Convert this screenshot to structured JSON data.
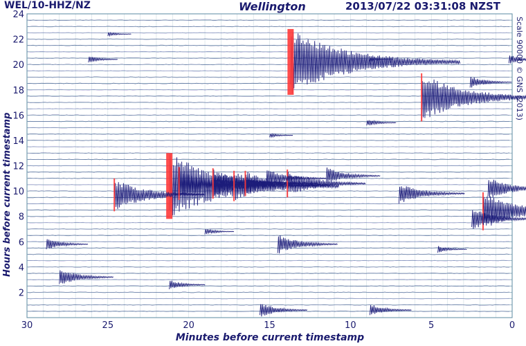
{
  "header": {
    "station": "WEL/10-HHZ/NZ",
    "place": "Wellington",
    "timestamp": "2013/07/22 03:31:08 NZST"
  },
  "side_note": "Scale 90000 © GNS (2013)",
  "colors": {
    "text": "#1a1a6e",
    "trace": "#1c1c7a",
    "trace_alt": "#8060c8",
    "grid": "#5a88a0",
    "saturated": "#ff3a3a"
  },
  "chart_data": {
    "type": "seismogram-helicorder",
    "title": "Wellington",
    "xlabel": "Minutes before current timestamp",
    "ylabel": "Hours before current timestamp",
    "xlim": [
      30,
      0
    ],
    "ylim": [
      0,
      24
    ],
    "x_ticks": [
      30,
      25,
      20,
      15,
      10,
      5,
      0
    ],
    "y_ticks": [
      2,
      4,
      6,
      8,
      10,
      12,
      14,
      16,
      18,
      20,
      22,
      24
    ],
    "grid": true,
    "trace_interval_hours": 0.5,
    "events": [
      {
        "minutes": 13.7,
        "hours": 20.2,
        "amplitude": 2.6,
        "saturated": true
      },
      {
        "minutes": 21.2,
        "hours": 10.4,
        "amplitude": 2.6,
        "saturated": true
      },
      {
        "minutes": 5.6,
        "hours": 17.4,
        "amplitude": 1.9,
        "saturated": true
      },
      {
        "minutes": 24.6,
        "hours": 9.7,
        "amplitude": 1.3,
        "saturated": true
      },
      {
        "minutes": 20.6,
        "hours": 10.6,
        "amplitude": 1.3,
        "saturated": true
      },
      {
        "minutes": 18.5,
        "hours": 10.6,
        "amplitude": 1.2,
        "saturated": true
      },
      {
        "minutes": 17.2,
        "hours": 10.4,
        "amplitude": 1.2,
        "saturated": true
      },
      {
        "minutes": 16.5,
        "hours": 10.6,
        "amplitude": 1.0,
        "saturated": true
      },
      {
        "minutes": 13.9,
        "hours": 10.6,
        "amplitude": 1.1,
        "saturated": true
      },
      {
        "minutes": 1.8,
        "hours": 8.4,
        "amplitude": 1.5,
        "saturated": true
      },
      {
        "minutes": 15.2,
        "hours": 11.0,
        "amplitude": 0.8,
        "saturated": false
      },
      {
        "minutes": 11.5,
        "hours": 11.2,
        "amplitude": 0.7,
        "saturated": false
      },
      {
        "minutes": 7.0,
        "hours": 9.8,
        "amplitude": 0.9,
        "saturated": false
      },
      {
        "minutes": 2.5,
        "hours": 7.8,
        "amplitude": 0.9,
        "saturated": false
      },
      {
        "minutes": 1.5,
        "hours": 10.2,
        "amplitude": 0.9,
        "saturated": false
      },
      {
        "minutes": 2.6,
        "hours": 18.6,
        "amplitude": 0.5,
        "saturated": false
      },
      {
        "minutes": 0.2,
        "hours": 20.4,
        "amplitude": 0.4,
        "saturated": false
      },
      {
        "minutes": 28.0,
        "hours": 3.2,
        "amplitude": 0.7,
        "saturated": false
      },
      {
        "minutes": 15.6,
        "hours": 0.6,
        "amplitude": 0.6,
        "saturated": false
      },
      {
        "minutes": 8.8,
        "hours": 0.6,
        "amplitude": 0.5,
        "saturated": false
      },
      {
        "minutes": 21.2,
        "hours": 2.6,
        "amplitude": 0.4,
        "saturated": false
      },
      {
        "minutes": 14.5,
        "hours": 5.8,
        "amplitude": 0.8,
        "saturated": false
      },
      {
        "minutes": 28.8,
        "hours": 5.8,
        "amplitude": 0.5,
        "saturated": false
      },
      {
        "minutes": 9.0,
        "hours": 15.4,
        "amplitude": 0.3,
        "saturated": false
      },
      {
        "minutes": 26.2,
        "hours": 20.4,
        "amplitude": 0.3,
        "saturated": false
      },
      {
        "minutes": 25.0,
        "hours": 22.4,
        "amplitude": 0.2,
        "saturated": false
      },
      {
        "minutes": 15.0,
        "hours": 14.4,
        "amplitude": 0.2,
        "saturated": false
      },
      {
        "minutes": 4.6,
        "hours": 5.4,
        "amplitude": 0.3,
        "saturated": false
      },
      {
        "minutes": 19.0,
        "hours": 6.8,
        "amplitude": 0.3,
        "saturated": false
      },
      {
        "minutes": 8.8,
        "hours": 20.4,
        "amplitude": 0.2,
        "saturated": false
      }
    ]
  }
}
